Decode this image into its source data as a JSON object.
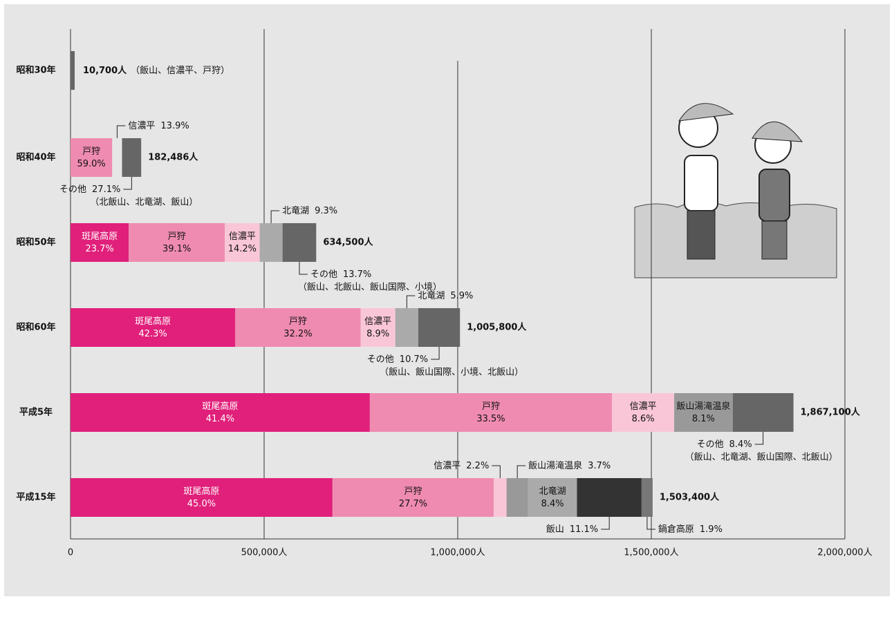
{
  "chart_data": {
    "type": "stacked-share-bar",
    "xlim": [
      0,
      2000000
    ],
    "xticks": [
      0,
      {
        "value": 500000,
        "label": "500,000人"
      },
      {
        "value": 1000000,
        "label": "1,000,000人"
      },
      {
        "value": 1500000,
        "label": "1,500,000人"
      },
      {
        "value": 2000000,
        "label": "2,000,000人"
      }
    ],
    "rows": [
      {
        "category": "昭和30年",
        "total": 10700,
        "total_label": "10,700人",
        "color": "#666666",
        "note": "（飯山、信濃平、戸狩）",
        "names": [],
        "values": [],
        "value_labels": [],
        "colors": []
      },
      {
        "category": "昭和40年",
        "total": 182486,
        "total_label": "182,486人",
        "note": "（北飯山、北竜湖、飯山）",
        "names": [
          "戸狩",
          "信濃平",
          "その他"
        ],
        "values": [
          59.0,
          13.9,
          27.1
        ],
        "value_labels": [
          "59.0%",
          "13.9%",
          "27.1%"
        ],
        "colors": [
          "#ef8bb0",
          "#e6e6e6",
          "#666666"
        ]
      },
      {
        "category": "昭和50年",
        "total": 634500,
        "total_label": "634,500人",
        "note": "（飯山、北飯山、飯山国際、小境）",
        "names": [
          "斑尾高原",
          "戸狩",
          "信濃平",
          "北竜湖",
          "その他"
        ],
        "values": [
          23.7,
          39.1,
          14.2,
          9.3,
          13.7
        ],
        "value_labels": [
          "23.7%",
          "39.1%",
          "14.2%",
          "9.3%",
          "13.7%"
        ],
        "colors": [
          "#e0207a",
          "#ef8bb0",
          "#f9c6d8",
          "#aaaaaa",
          "#666666"
        ]
      },
      {
        "category": "昭和60年",
        "total": 1005800,
        "total_label": "1,005,800人",
        "note": "（飯山、飯山国際、小境、北飯山）",
        "names": [
          "斑尾高原",
          "戸狩",
          "信濃平",
          "北竜湖",
          "その他"
        ],
        "values": [
          42.3,
          32.2,
          8.9,
          5.9,
          10.7
        ],
        "value_labels": [
          "42.3%",
          "32.2%",
          "8.9%",
          "5.9%",
          "10.7%"
        ],
        "colors": [
          "#e0207a",
          "#ef8bb0",
          "#f9c6d8",
          "#aaaaaa",
          "#666666"
        ]
      },
      {
        "category": "平成5年",
        "total": 1867100,
        "total_label": "1,867,100人",
        "note": "（飯山、北竜湖、飯山国際、北飯山）",
        "names": [
          "斑尾高原",
          "戸狩",
          "信濃平",
          "飯山湯滝温泉",
          "その他"
        ],
        "values": [
          41.4,
          33.5,
          8.6,
          8.1,
          8.4
        ],
        "value_labels": [
          "41.4%",
          "33.5%",
          "8.6%",
          "8.1%",
          "8.4%"
        ],
        "colors": [
          "#e0207a",
          "#ef8bb0",
          "#f9c6d8",
          "#999999",
          "#666666"
        ]
      },
      {
        "category": "平成15年",
        "total": 1503400,
        "total_label": "1,503,400人",
        "names": [
          "斑尾高原",
          "戸狩",
          "信濃平",
          "飯山湯滝温泉",
          "北竜湖",
          "飯山",
          "鍋倉高原"
        ],
        "values": [
          45.0,
          27.7,
          2.2,
          3.7,
          8.4,
          11.1,
          1.9
        ],
        "value_labels": [
          "45.0%",
          "27.7%",
          "2.2%",
          "3.7%",
          "8.4%",
          "11.1%",
          "1.9%"
        ],
        "colors": [
          "#e0207a",
          "#ef8bb0",
          "#f9c6d8",
          "#999999",
          "#aaaaaa",
          "#333333",
          "#777777"
        ]
      }
    ]
  }
}
